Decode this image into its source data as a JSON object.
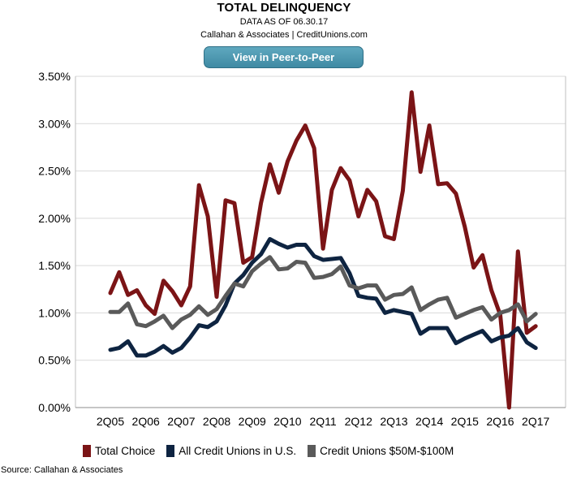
{
  "header": {
    "title": "TOTAL DELINQUENCY",
    "data_as_of": "DATA AS OF 06.30.17",
    "attribution": "Callahan & Associates | CreditUnions.com"
  },
  "actions": {
    "peer_button_label": "View in Peer-to-Peer"
  },
  "footer": {
    "source": "Source: Callahan & Associates"
  },
  "chart_data": {
    "type": "line",
    "title": "TOTAL DELINQUENCY",
    "xlabel": "",
    "ylabel": "",
    "ylim": [
      0,
      3.5
    ],
    "y_ticks": [
      "0.00%",
      "0.50%",
      "1.00%",
      "1.50%",
      "2.00%",
      "2.50%",
      "3.00%",
      "3.50%"
    ],
    "x_tick_labels": [
      "2Q05",
      "2Q06",
      "2Q07",
      "2Q08",
      "2Q09",
      "2Q10",
      "2Q11",
      "2Q12",
      "2Q13",
      "2Q14",
      "2Q15",
      "2Q16",
      "2Q17"
    ],
    "grid": "horizontal",
    "legend_position": "bottom",
    "categories": [
      "2Q05",
      "3Q05",
      "4Q05",
      "1Q06",
      "2Q06",
      "3Q06",
      "4Q06",
      "1Q07",
      "2Q07",
      "3Q07",
      "4Q07",
      "1Q08",
      "2Q08",
      "3Q08",
      "4Q08",
      "1Q09",
      "2Q09",
      "3Q09",
      "4Q09",
      "1Q10",
      "2Q10",
      "3Q10",
      "4Q10",
      "1Q11",
      "2Q11",
      "3Q11",
      "4Q11",
      "1Q12",
      "2Q12",
      "3Q12",
      "4Q12",
      "1Q13",
      "2Q13",
      "3Q13",
      "4Q13",
      "1Q14",
      "2Q14",
      "3Q14",
      "4Q14",
      "1Q15",
      "2Q15",
      "3Q15",
      "4Q15",
      "1Q16",
      "2Q16",
      "3Q16",
      "4Q16",
      "1Q17",
      "2Q17"
    ],
    "series": [
      {
        "name": "Total Choice",
        "color": "#7b1416",
        "values": [
          1.21,
          1.43,
          1.19,
          1.24,
          1.08,
          0.99,
          1.34,
          1.23,
          1.08,
          1.28,
          2.35,
          2.02,
          1.17,
          2.19,
          2.16,
          1.53,
          1.59,
          2.16,
          2.57,
          2.27,
          2.6,
          2.82,
          2.98,
          2.74,
          1.68,
          2.3,
          2.53,
          2.4,
          2.02,
          2.3,
          2.18,
          1.81,
          1.78,
          2.29,
          3.33,
          2.49,
          2.98,
          2.36,
          2.37,
          2.26,
          1.91,
          1.48,
          1.61,
          1.24,
          0.98,
          0.0,
          1.65,
          0.79,
          0.86
        ]
      },
      {
        "name": "All Credit Unions in U.S.",
        "color": "#0e2441",
        "values": [
          0.61,
          0.63,
          0.7,
          0.55,
          0.55,
          0.59,
          0.65,
          0.58,
          0.63,
          0.74,
          0.87,
          0.85,
          0.91,
          1.08,
          1.31,
          1.4,
          1.53,
          1.62,
          1.78,
          1.73,
          1.69,
          1.72,
          1.72,
          1.6,
          1.56,
          1.57,
          1.58,
          1.42,
          1.18,
          1.16,
          1.15,
          1.0,
          1.03,
          1.01,
          0.99,
          0.78,
          0.84,
          0.84,
          0.84,
          0.68,
          0.73,
          0.77,
          0.81,
          0.7,
          0.74,
          0.76,
          0.84,
          0.69,
          0.63
        ]
      },
      {
        "name": "Credit Unions $50M-$100M",
        "color": "#5a5a5a",
        "values": [
          1.01,
          1.01,
          1.1,
          0.88,
          0.86,
          0.91,
          0.97,
          0.84,
          0.93,
          0.98,
          1.07,
          0.98,
          1.04,
          1.18,
          1.31,
          1.28,
          1.44,
          1.52,
          1.59,
          1.46,
          1.47,
          1.54,
          1.53,
          1.37,
          1.38,
          1.41,
          1.49,
          1.29,
          1.26,
          1.29,
          1.29,
          1.14,
          1.19,
          1.2,
          1.27,
          1.03,
          1.09,
          1.14,
          1.16,
          0.95,
          0.99,
          1.03,
          1.06,
          0.93,
          1.0,
          1.03,
          1.09,
          0.91,
          0.99
        ]
      }
    ]
  }
}
